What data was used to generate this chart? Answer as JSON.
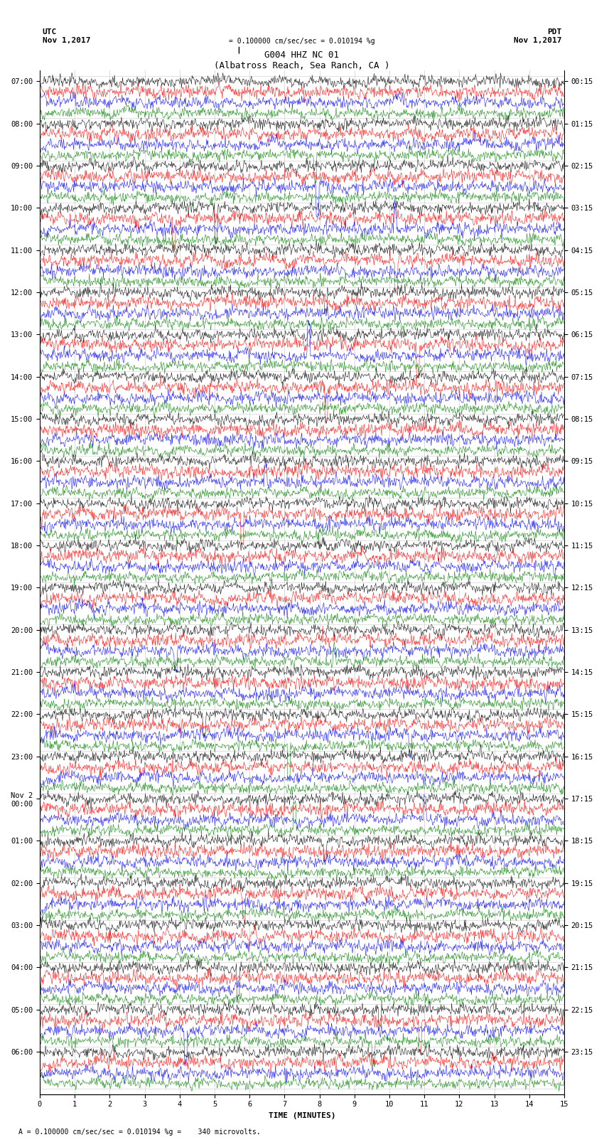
{
  "title_line1": "G004 HHZ NC 01",
  "title_line2": "(Albatross Reach, Sea Ranch, CA )",
  "scale_text": "= 0.100000 cm/sec/sec = 0.010194 %g",
  "footer_text": "= 0.100000 cm/sec/sec = 0.010194 %g =    340 microvolts.",
  "left_label": "UTC",
  "left_date": "Nov 1,2017",
  "right_label": "PDT",
  "right_date": "Nov 1,2017",
  "xlabel": "TIME (MINUTES)",
  "xmin": 0,
  "xmax": 15,
  "colors": [
    "black",
    "red",
    "blue",
    "green"
  ],
  "left_times": [
    "07:00",
    "",
    "",
    "",
    "08:00",
    "",
    "",
    "",
    "09:00",
    "",
    "",
    "",
    "10:00",
    "",
    "",
    "",
    "11:00",
    "",
    "",
    "",
    "12:00",
    "",
    "",
    "",
    "13:00",
    "",
    "",
    "",
    "14:00",
    "",
    "",
    "",
    "15:00",
    "",
    "",
    "",
    "16:00",
    "",
    "",
    "",
    "17:00",
    "",
    "",
    "",
    "18:00",
    "",
    "",
    "",
    "19:00",
    "",
    "",
    "",
    "20:00",
    "",
    "",
    "",
    "21:00",
    "",
    "",
    "",
    "22:00",
    "",
    "",
    "",
    "23:00",
    "",
    "",
    "",
    "Nov 2\n00:00",
    "",
    "",
    "",
    "01:00",
    "",
    "",
    "",
    "02:00",
    "",
    "",
    "",
    "03:00",
    "",
    "",
    "",
    "04:00",
    "",
    "",
    "",
    "05:00",
    "",
    "",
    "",
    "06:00",
    "",
    "",
    ""
  ],
  "right_times": [
    "00:15",
    "",
    "",
    "",
    "01:15",
    "",
    "",
    "",
    "02:15",
    "",
    "",
    "",
    "03:15",
    "",
    "",
    "",
    "04:15",
    "",
    "",
    "",
    "05:15",
    "",
    "",
    "",
    "06:15",
    "",
    "",
    "",
    "07:15",
    "",
    "",
    "",
    "08:15",
    "",
    "",
    "",
    "09:15",
    "",
    "",
    "",
    "10:15",
    "",
    "",
    "",
    "11:15",
    "",
    "",
    "",
    "12:15",
    "",
    "",
    "",
    "13:15",
    "",
    "",
    "",
    "14:15",
    "",
    "",
    "",
    "15:15",
    "",
    "",
    "",
    "16:15",
    "",
    "",
    "",
    "17:15",
    "",
    "",
    "",
    "18:15",
    "",
    "",
    "",
    "19:15",
    "",
    "",
    "",
    "20:15",
    "",
    "",
    "",
    "21:15",
    "",
    "",
    "",
    "22:15",
    "",
    "",
    "",
    "23:15",
    "",
    "",
    ""
  ],
  "num_rows": 96,
  "num_hour_groups": 24,
  "traces_per_hour": 4,
  "bg_color": "white",
  "grid_color": "#cccccc",
  "title_fontsize": 9,
  "label_fontsize": 8,
  "tick_fontsize": 7.5
}
